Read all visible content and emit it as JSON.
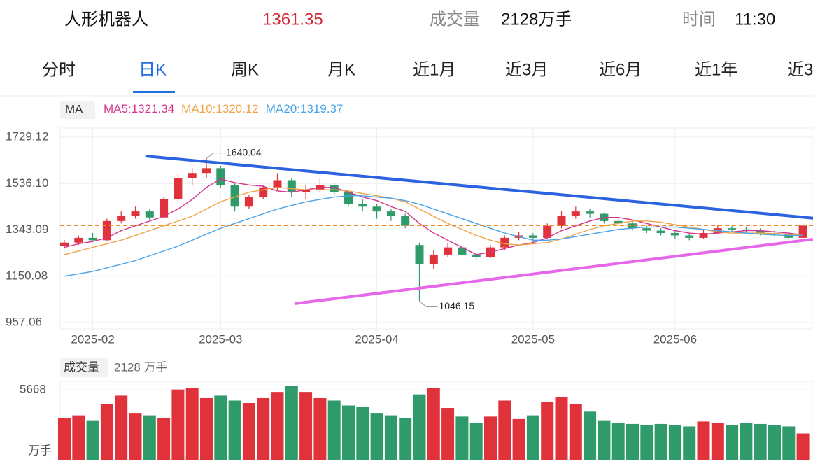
{
  "header": {
    "name": "人形机器人",
    "price": 1361.35,
    "volume_label": "成交量",
    "volume": "2128万手",
    "time_label": "时间",
    "time": "11:30"
  },
  "tabs": [
    "分时",
    "日K",
    "周K",
    "月K",
    "近1月",
    "近3月",
    "近6月",
    "近1年",
    "近3"
  ],
  "active_tab": 1,
  "chart_data": {
    "type": "candlestick",
    "ma_label": "MA",
    "categories": [
      null,
      null,
      "2025-02",
      null,
      null,
      null,
      null,
      null,
      null,
      null,
      null,
      "2025-03",
      null,
      null,
      null,
      null,
      null,
      null,
      null,
      null,
      null,
      null,
      "2025-04",
      null,
      null,
      null,
      null,
      null,
      null,
      null,
      null,
      null,
      null,
      "2025-05",
      null,
      null,
      null,
      null,
      null,
      null,
      null,
      null,
      null,
      "2025-06",
      null,
      null,
      null,
      null,
      null,
      null,
      null,
      null,
      null
    ],
    "candles": [
      [
        1275,
        1300,
        1265,
        1290
      ],
      [
        1290,
        1320,
        1280,
        1310
      ],
      [
        1310,
        1330,
        1295,
        1300
      ],
      [
        1300,
        1390,
        1295,
        1380
      ],
      [
        1380,
        1420,
        1370,
        1400
      ],
      [
        1400,
        1440,
        1390,
        1420
      ],
      [
        1420,
        1430,
        1385,
        1395
      ],
      [
        1395,
        1480,
        1390,
        1470
      ],
      [
        1470,
        1575,
        1460,
        1560
      ],
      [
        1560,
        1600,
        1530,
        1580
      ],
      [
        1580,
        1640.04,
        1560,
        1600
      ],
      [
        1600,
        1610,
        1520,
        1530
      ],
      [
        1530,
        1540,
        1420,
        1440
      ],
      [
        1440,
        1490,
        1430,
        1480
      ],
      [
        1480,
        1530,
        1470,
        1520
      ],
      [
        1520,
        1580,
        1510,
        1550
      ],
      [
        1550,
        1560,
        1480,
        1500
      ],
      [
        1500,
        1530,
        1470,
        1510
      ],
      [
        1510,
        1560,
        1500,
        1530
      ],
      [
        1530,
        1540,
        1490,
        1500
      ],
      [
        1500,
        1510,
        1440,
        1450
      ],
      [
        1450,
        1470,
        1420,
        1440
      ],
      [
        1440,
        1450,
        1390,
        1420
      ],
      [
        1420,
        1430,
        1380,
        1400
      ],
      [
        1400,
        1410,
        1350,
        1360
      ],
      [
        1280,
        1290,
        1046.15,
        1200
      ],
      [
        1200,
        1260,
        1180,
        1240
      ],
      [
        1240,
        1290,
        1230,
        1270
      ],
      [
        1270,
        1275,
        1230,
        1240
      ],
      [
        1240,
        1250,
        1220,
        1230
      ],
      [
        1230,
        1280,
        1225,
        1270
      ],
      [
        1270,
        1320,
        1260,
        1310
      ],
      [
        1310,
        1335,
        1300,
        1320
      ],
      [
        1320,
        1330,
        1290,
        1310
      ],
      [
        1310,
        1370,
        1305,
        1360
      ],
      [
        1360,
        1420,
        1350,
        1400
      ],
      [
        1400,
        1440,
        1390,
        1420
      ],
      [
        1420,
        1430,
        1395,
        1410
      ],
      [
        1410,
        1415,
        1370,
        1380
      ],
      [
        1380,
        1395,
        1360,
        1370
      ],
      [
        1370,
        1380,
        1340,
        1350
      ],
      [
        1350,
        1360,
        1330,
        1340
      ],
      [
        1340,
        1350,
        1320,
        1330
      ],
      [
        1330,
        1340,
        1305,
        1320
      ],
      [
        1320,
        1330,
        1300,
        1310
      ],
      [
        1310,
        1345,
        1305,
        1330
      ],
      [
        1330,
        1365,
        1325,
        1350
      ],
      [
        1350,
        1360,
        1335,
        1345
      ],
      [
        1345,
        1355,
        1330,
        1340
      ],
      [
        1340,
        1350,
        1320,
        1330
      ],
      [
        1330,
        1340,
        1315,
        1325
      ],
      [
        1325,
        1330,
        1295,
        1310
      ],
      [
        1310,
        1370,
        1305,
        1361.35
      ]
    ],
    "up_color": "#e0323a",
    "down_color": "#2f9a6a",
    "series": [
      {
        "name": "MA5",
        "color": "#d6338a",
        "values": [
          1270,
          1285,
          1295,
          1310,
          1340,
          1360,
          1380,
          1400,
          1430,
          1470,
          1520,
          1555,
          1540,
          1530,
          1525,
          1505,
          1500,
          1510,
          1520,
          1520,
          1500,
          1480,
          1465,
          1440,
          1420,
          1370,
          1330,
          1300,
          1270,
          1240,
          1250,
          1265,
          1280,
          1290,
          1310,
          1340,
          1360,
          1380,
          1395,
          1395,
          1385,
          1370,
          1355,
          1340,
          1330,
          1325,
          1330,
          1335,
          1340,
          1340,
          1335,
          1330,
          1321.34
        ]
      },
      {
        "name": "MA10",
        "color": "#eea447",
        "values": [
          1240,
          1255,
          1270,
          1285,
          1300,
          1320,
          1340,
          1360,
          1380,
          1400,
          1430,
          1460,
          1480,
          1500,
          1510,
          1520,
          1515,
          1510,
          1510,
          1510,
          1505,
          1495,
          1485,
          1475,
          1460,
          1430,
          1400,
          1370,
          1345,
          1320,
          1300,
          1285,
          1280,
          1285,
          1290,
          1305,
          1325,
          1345,
          1360,
          1370,
          1380,
          1380,
          1375,
          1365,
          1355,
          1345,
          1335,
          1330,
          1330,
          1330,
          1328,
          1325,
          1320.12
        ]
      },
      {
        "name": "MA20",
        "color": "#4aa3e8",
        "values": [
          1150,
          1160,
          1170,
          1185,
          1200,
          1215,
          1235,
          1255,
          1275,
          1300,
          1325,
          1350,
          1370,
          1390,
          1410,
          1430,
          1445,
          1460,
          1470,
          1480,
          1485,
          1485,
          1480,
          1475,
          1465,
          1450,
          1430,
          1410,
          1390,
          1370,
          1350,
          1330,
          1315,
          1300,
          1300,
          1305,
          1315,
          1325,
          1335,
          1345,
          1350,
          1355,
          1355,
          1355,
          1350,
          1345,
          1340,
          1335,
          1330,
          1325,
          1322,
          1320,
          1319.37
        ]
      }
    ],
    "ylim": [
      931,
      1767
    ],
    "yticks": [
      1729.12,
      {
        "value": 1536.1,
        "label": "1536.10"
      },
      1343.09,
      1150.08,
      957.06
    ],
    "annotations": [
      {
        "text": "1640.04",
        "index": 10,
        "value": 1640.04
      },
      {
        "text": "1046.15",
        "index": 25,
        "value": 1046.15
      }
    ],
    "trendlines": [
      {
        "color": "#2a62e0",
        "points": [
          [
            5.7,
            1650.5
          ],
          [
            52.9,
            1391
          ]
        ]
      },
      {
        "color": "#e668e8",
        "points": [
          [
            16.2,
            1035.8
          ],
          [
            52.7,
            1304
          ]
        ]
      }
    ],
    "last_price_color": "#f08a24",
    "volume": {
      "label": "成交量",
      "current": "2128 万手",
      "unit": "万手",
      "ylim": [
        0,
        6360
      ],
      "yticks": [
        5668
      ],
      "values": [
        3400,
        3600,
        3200,
        4500,
        5200,
        3800,
        3600,
        3400,
        5700,
        5800,
        5000,
        5200,
        4800,
        4600,
        5000,
        5500,
        6000,
        5500,
        5000,
        4800,
        4400,
        4300,
        3800,
        3600,
        3400,
        5300,
        5800,
        4200,
        3500,
        3000,
        3500,
        4800,
        3300,
        3600,
        4700,
        5100,
        4500,
        3900,
        3200,
        3000,
        2900,
        2800,
        2900,
        2800,
        2700,
        3100,
        3000,
        2800,
        3000,
        2900,
        2800,
        2700,
        2128
      ]
    }
  }
}
